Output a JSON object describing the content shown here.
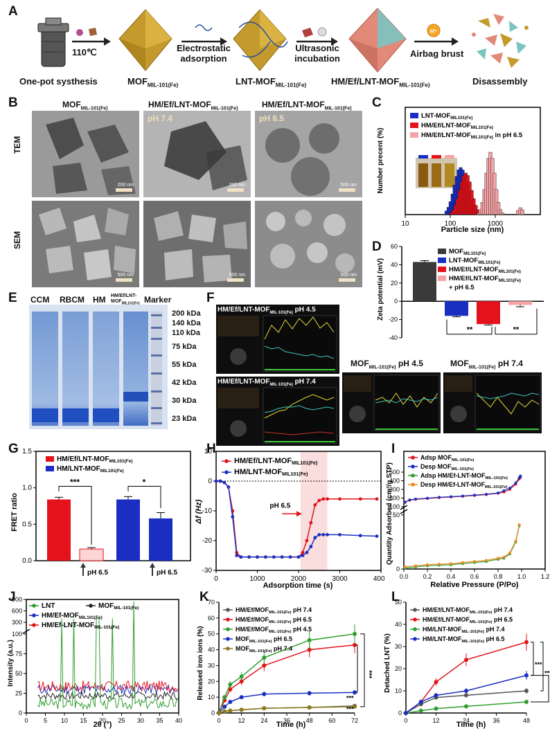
{
  "panel_letters": {
    "a": "A",
    "b": "B",
    "c": "C",
    "d": "D",
    "e": "E",
    "f": "F",
    "g": "G",
    "h": "H",
    "i": "I",
    "j": "J",
    "k": "K",
    "l": "L"
  },
  "panel_a": {
    "temp": "110℃",
    "arrow2": "Electrostatic adsorption",
    "arrow3": "Ultrasonic incubation",
    "arrow4": "Airbag brust",
    "step1": "One-pot systhesis",
    "step2_main": "MOF",
    "step2_sub": "MIL-101(Fe)",
    "step3_main": "LNT-MOF",
    "step3_sub": "MIL-101(Fe)",
    "step4_main": "HM/Ef/LNT-MOF",
    "step4_sub": "MIL-101(Fe)",
    "step5": "Disassembly",
    "h_icon": "H⁺"
  },
  "panel_b": {
    "col1_main": "MOF",
    "col1_sub": "MIL-101(Fe)",
    "col2_main": "HM/Ef/LNT-MOF",
    "col2_sub": "MIL-101(Fe)",
    "col3_main": "HM/Ef/LNT-MOF",
    "col3_sub": "MIL-101(Fe)",
    "row1": "TEM",
    "row2": "SEM",
    "ph74": "pH 7.4",
    "ph65": "pH 6.5",
    "sb": [
      "200 nm",
      "200 nm",
      "500 nm",
      "500 nm",
      "500 nm",
      "500 nm"
    ]
  },
  "panel_c": {
    "legend": [
      {
        "main": "LNT-MOF",
        "sub": "MIL101(Fe)",
        "tail": "",
        "color": "#1a2fc2"
      },
      {
        "main": "HM/Ef/LNT-MOF",
        "sub": "MIL101(Fe)",
        "tail": "",
        "color": "#e3121b"
      },
      {
        "main": "HM/Ef/LNT-MOF",
        "sub": "MIL101(Fe)",
        "tail": " in pH 6.5",
        "color": "#f5a3a6"
      }
    ],
    "ylabel": "Number precent (%)",
    "xlabel": "Particle size (nm)",
    "xticks": [
      "10",
      "100",
      "1000"
    ]
  },
  "panel_d": {
    "ylabel": "Zeta potential (mV)",
    "yticks": [
      "60",
      "40",
      "20",
      "0",
      "-20",
      "-40"
    ],
    "legend": [
      {
        "main": "MOF",
        "sub": "MIL101(Fe)",
        "tail": "",
        "color": "#3a3a3a"
      },
      {
        "main": "LNT-MOF",
        "sub": "MIL101(Fe)",
        "tail": "",
        "color": "#1a2fc2"
      },
      {
        "main": "HM/Ef/LNT-MOF",
        "sub": "MIL101(Fe)",
        "tail": "",
        "color": "#e3121b"
      },
      {
        "main": "HM/Ef/LNT-MOF",
        "sub": "MIL101(Fe)",
        "tail": "",
        "color": "#f5a3a6"
      }
    ],
    "legend_extra": "+ pH 6.5",
    "sig": [
      "**",
      "**"
    ]
  },
  "panel_e": {
    "cols": [
      "CCM",
      "RBCM",
      "HM",
      "HM/Ef/LNT-",
      "MOF",
      "MIL101(Fe)",
      "Marker"
    ],
    "markers": [
      "200 kDa",
      "140 kDa",
      "110 kDa",
      "75 kDa",
      "55 kDa",
      "42 kDa",
      "30 kDa",
      "23 kDa"
    ]
  },
  "panel_f": {
    "t1_main": "HM/Ef/LNT-MOF",
    "t1_sub": "MIL-101(Fe)",
    "t1_ph": "pH 4.5",
    "t2_main": "HM/Ef/LNT-MOF",
    "t2_sub": "MIL-101(Fe)",
    "t2_ph": "pH 7.4",
    "t3_main": "MOF",
    "t3_sub": "MIL-101(Fe)",
    "t3_ph": "pH 4.5",
    "t4_main": "MOF",
    "t4_sub": "MIL-101(Fe)",
    "t4_ph": "pH 7.4"
  },
  "panel_g": {
    "ylabel": "FRET ratio",
    "yticks": [
      "1.5",
      "1.0",
      "0.5",
      "0.0"
    ],
    "legend": [
      {
        "main": "HM/Ef/LNT-MOF",
        "sub": "MIL101(Fe)",
        "color": "#e3121b"
      },
      {
        "main": "HM/LNT-MOF",
        "sub": "MIL101(Fe)",
        "color": "#1a2fc2"
      }
    ],
    "sig": [
      "***",
      "*"
    ],
    "ph_labels": [
      "pH 6.5",
      "pH 6.5"
    ]
  },
  "panel_h": {
    "ylabel": "Δf (Hz)",
    "xlabel": "Adsorption time (s)",
    "xticks": [
      "0",
      "1000",
      "2000",
      "3000",
      "4000"
    ],
    "yticks": [
      "10",
      "0",
      "-10",
      "-20",
      "-30"
    ],
    "legend": [
      {
        "main": "HM/Ef/LNT-MOF",
        "sub": "MIL101(Fe)",
        "color": "#e3121b"
      },
      {
        "main": "HM/LNT-MOF",
        "sub": "MIL101(Fe)",
        "color": "#1a2fc2"
      }
    ],
    "ph_label": "pH 6.5"
  },
  "panel_i": {
    "ylabel": "Quantity Adsorbed (cm³/g STP)",
    "xlabel": "Relative Pressure (P/Po)",
    "xticks": [
      "0.0",
      "0.2",
      "0.4",
      "0.6",
      "0.8",
      "1.0",
      "1.2"
    ],
    "yticks": [
      "500",
      "400",
      "300",
      "200",
      "100",
      "50",
      "0"
    ],
    "legend": [
      {
        "main": "Adsp MOF",
        "sub": "MIL-101(Fe)",
        "color": "#e3121b"
      },
      {
        "main": "Desp MOF",
        "sub": "MIL-101(Fe)",
        "color": "#1a2fc2"
      },
      {
        "main": "Adsp HM/Ef-LNT-MOF",
        "sub": "MIL-101(Fe)",
        "color": "#2e9e2e"
      },
      {
        "main": "Desp HM/Ef-LNT-MOF",
        "sub": "MIL-101(Fe)",
        "color": "#f08a24"
      }
    ]
  },
  "panel_j": {
    "ylabel": "Intensity (a.u.)",
    "xlabel": "2θ (°)",
    "xticks": [
      "0",
      "5",
      "10",
      "15",
      "20",
      "25",
      "30",
      "35",
      "40"
    ],
    "yticks": [
      "900",
      "600",
      "300",
      "100",
      "75",
      "50",
      "25",
      "0"
    ],
    "legend": [
      {
        "main": "LNT",
        "sub": "",
        "color": "#2e9e2e"
      },
      {
        "main": "MOF",
        "sub": "MIL-101(Fe)",
        "color": "#222222"
      },
      {
        "main": "HM/Ef-MOF",
        "sub": "MIL101(Fe)",
        "color": "#1a2fc2"
      },
      {
        "main": "HM/Ef-LNT-MOF",
        "sub": "MIL-101(Fe)",
        "color": "#e3121b"
      }
    ]
  },
  "panel_k": {
    "ylabel": "Released iron ions (%)",
    "xlabel": "Time (h)",
    "xticks": [
      "0",
      "12",
      "24",
      "36",
      "48",
      "60",
      "72"
    ],
    "yticks": [
      "70",
      "60",
      "50",
      "40",
      "30",
      "20",
      "10",
      "0"
    ],
    "legend": [
      {
        "main": "HM/Ef/MOF",
        "sub": "MIL-101(Fe)",
        "tail": " pH 7.4",
        "color": "#555555"
      },
      {
        "main": "HM/Ef/MOF",
        "sub": "MIL-101(Fe)",
        "tail": " pH 6.5",
        "color": "#e3121b"
      },
      {
        "main": "HM/Ef/MOF",
        "sub": "MIL-101(Fe)",
        "tail": " pH 4.5",
        "color": "#2e9e2e"
      },
      {
        "main": "MOF",
        "sub": "MIL-101(Fe)",
        "tail": " pH 6.5",
        "color": "#1a2fc2"
      },
      {
        "main": "MOF",
        "sub": "MIL-101(Fe)",
        "tail": " pH 7.4",
        "color": "#8a7a1a"
      }
    ],
    "sig": [
      "***",
      "***",
      "***"
    ]
  },
  "panel_l": {
    "ylabel": "Detached LNT (%)",
    "xlabel": "Time (h)",
    "xticks": [
      "0",
      "12",
      "24",
      "36",
      "48"
    ],
    "yticks": [
      "50",
      "40",
      "30",
      "20",
      "10",
      "0"
    ],
    "legend": [
      {
        "main": "HM/Ef/LNT-MOF",
        "sub": "MIL-101(Fe)",
        "tail": " pH 7.4",
        "color": "#555555"
      },
      {
        "main": "HM/Ef/LNT-MOF",
        "sub": "MIL-101(Fe)",
        "tail": " pH 6.5",
        "color": "#e3121b"
      },
      {
        "main": "HM/LNT-MOF",
        "sub": "MIL-101(Fe)",
        "tail": " pH 7.4",
        "color": "#2e9e2e"
      },
      {
        "main": "HM/LNT-MOF",
        "sub": "MIL-101(Fe)",
        "tail": " pH 6.5",
        "color": "#1a2fc2"
      }
    ],
    "sig": [
      "***",
      "***",
      "***"
    ]
  },
  "chart_data": [
    {
      "type": "bar",
      "panel": "D",
      "categories": [
        "MOF",
        "LNT-MOF",
        "HM/Ef/LNT-MOF",
        "HM/Ef/LNT-MOF + pH 6.5"
      ],
      "values": [
        43,
        -16,
        -25,
        -4
      ],
      "errors": [
        1.5,
        1,
        1,
        2
      ],
      "ylim": [
        -40,
        60
      ]
    },
    {
      "type": "bar",
      "panel": "G",
      "categories": [
        "HM/Ef/LNT-MOF",
        "HM/Ef/LNT-MOF pH 6.5",
        "HM/LNT-MOF",
        "HM/LNT-MOF pH 6.5"
      ],
      "values": [
        0.84,
        0.16,
        0.84,
        0.58
      ],
      "errors": [
        0.03,
        0.02,
        0.04,
        0.08
      ],
      "ylim": [
        0,
        1.5
      ]
    },
    {
      "type": "line",
      "panel": "H",
      "x": [
        0,
        100,
        200,
        300,
        400,
        500,
        600,
        800,
        1000,
        1200,
        1400,
        1600,
        1800,
        2000,
        2100,
        2200,
        2300,
        2400,
        2500,
        2600,
        2700,
        3000,
        3500,
        3900
      ],
      "series": [
        {
          "name": "HM/Ef/LNT-MOF",
          "values": [
            0,
            0,
            -0.5,
            -2,
            -10,
            -24,
            -25.5,
            -25.5,
            -25.5,
            -25.5,
            -25.5,
            -25.5,
            -25.5,
            -25.5,
            -24,
            -20,
            -14,
            -8,
            -6.5,
            -6,
            -6,
            -6,
            -6,
            -6
          ]
        },
        {
          "name": "HM/LNT-MOF",
          "values": [
            0,
            0,
            -0.5,
            -2,
            -12,
            -25,
            -25.5,
            -25.5,
            -25.5,
            -25.5,
            -25.5,
            -25.5,
            -25.5,
            -25.5,
            -25,
            -24,
            -22,
            -19,
            -18,
            -18,
            -18,
            -18,
            -18.3,
            -18.5
          ]
        }
      ],
      "xlim": [
        0,
        4000
      ],
      "ylim": [
        -30,
        10
      ]
    },
    {
      "type": "line",
      "panel": "K",
      "x": [
        0,
        3,
        6,
        12,
        24,
        48,
        72
      ],
      "series": [
        {
          "name": "HM/Ef/MOF pH 7.4",
          "values": [
            0,
            1,
            1.5,
            2,
            3,
            3.5,
            4.5
          ]
        },
        {
          "name": "HM/Ef/MOF pH 6.5",
          "values": [
            0,
            8,
            15,
            20,
            30,
            40,
            43
          ]
        },
        {
          "name": "HM/Ef/MOF pH 4.5",
          "values": [
            0,
            10,
            18,
            23,
            35,
            46,
            50
          ]
        },
        {
          "name": "MOF pH 6.5",
          "values": [
            0,
            4,
            7,
            10,
            12,
            12.5,
            13
          ]
        },
        {
          "name": "MOF pH 7.4",
          "values": [
            0,
            1,
            1.5,
            2,
            3,
            3.5,
            4
          ]
        }
      ],
      "xlim": [
        0,
        72
      ],
      "ylim": [
        0,
        70
      ]
    },
    {
      "type": "line",
      "panel": "L",
      "x": [
        0,
        6,
        12,
        24,
        48
      ],
      "series": [
        {
          "name": "HM/Ef/LNT-MOF pH 7.4",
          "values": [
            0,
            4,
            7,
            8,
            10
          ]
        },
        {
          "name": "HM/Ef/LNT-MOF pH 6.5",
          "values": [
            0,
            5,
            14,
            24,
            32
          ]
        },
        {
          "name": "HM/LNT-MOF pH 7.4",
          "values": [
            0,
            1,
            2,
            3,
            5
          ]
        },
        {
          "name": "HM/LNT-MOF pH 6.5",
          "values": [
            0,
            5,
            8,
            10,
            17
          ]
        }
      ],
      "xlim": [
        0,
        48
      ],
      "ylim": [
        0,
        50
      ]
    }
  ]
}
